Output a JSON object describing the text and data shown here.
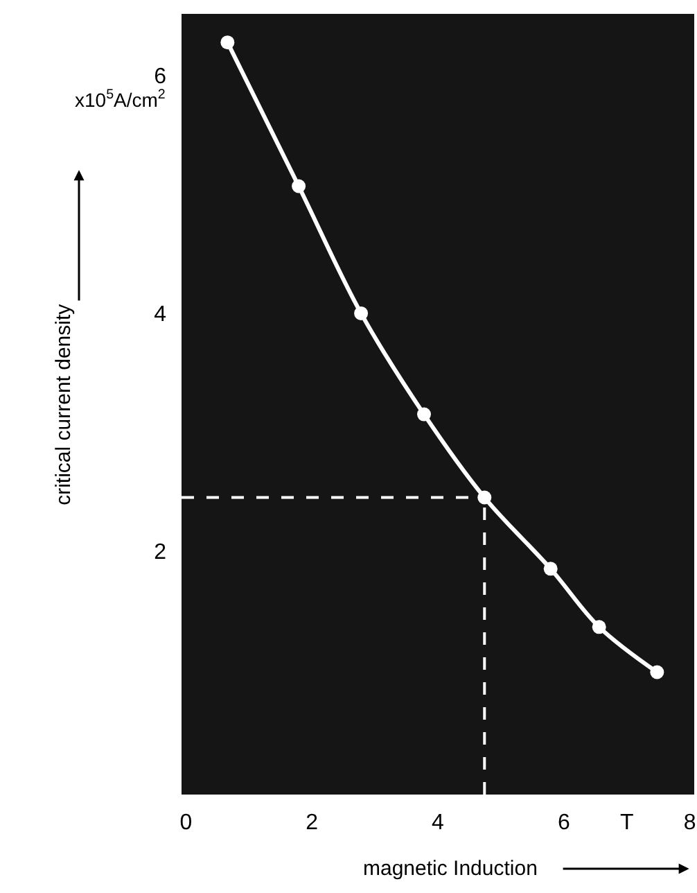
{
  "chart_data": {
    "type": "line",
    "xlabel": "magnetic Induction",
    "ylabel": "critical current density",
    "annotations": [
      "x10$^{5}$A/cm$^{2}$"
    ],
    "x": [
      0.66,
      1.79,
      2.78,
      3.78,
      4.74,
      5.79,
      6.56,
      7.48
    ],
    "series": [
      {
        "color": "#ffffff",
        "values": [
          6.28,
          5.07,
          4.0,
          3.15,
          2.45,
          1.85,
          1.36,
          0.98
        ]
      }
    ],
    "xlim": [
      -0.07,
      8.07
    ],
    "ylim": [
      -0.05,
      6.52
    ],
    "xticks": [
      0,
      2,
      4,
      6,
      {
        "value": 7,
        "label": "T"
      },
      8
    ],
    "yticks": [
      2,
      4,
      6
    ],
    "ref_lines": [
      {
        "axis": "y",
        "value": 2.45,
        "color": "#ffffff",
        "line_style": "dashed"
      },
      {
        "axis": "x",
        "value": 4.74,
        "color": "#ffffff",
        "line_style": "dashed"
      }
    ],
    "marker": "circle",
    "line_style": "solid"
  }
}
